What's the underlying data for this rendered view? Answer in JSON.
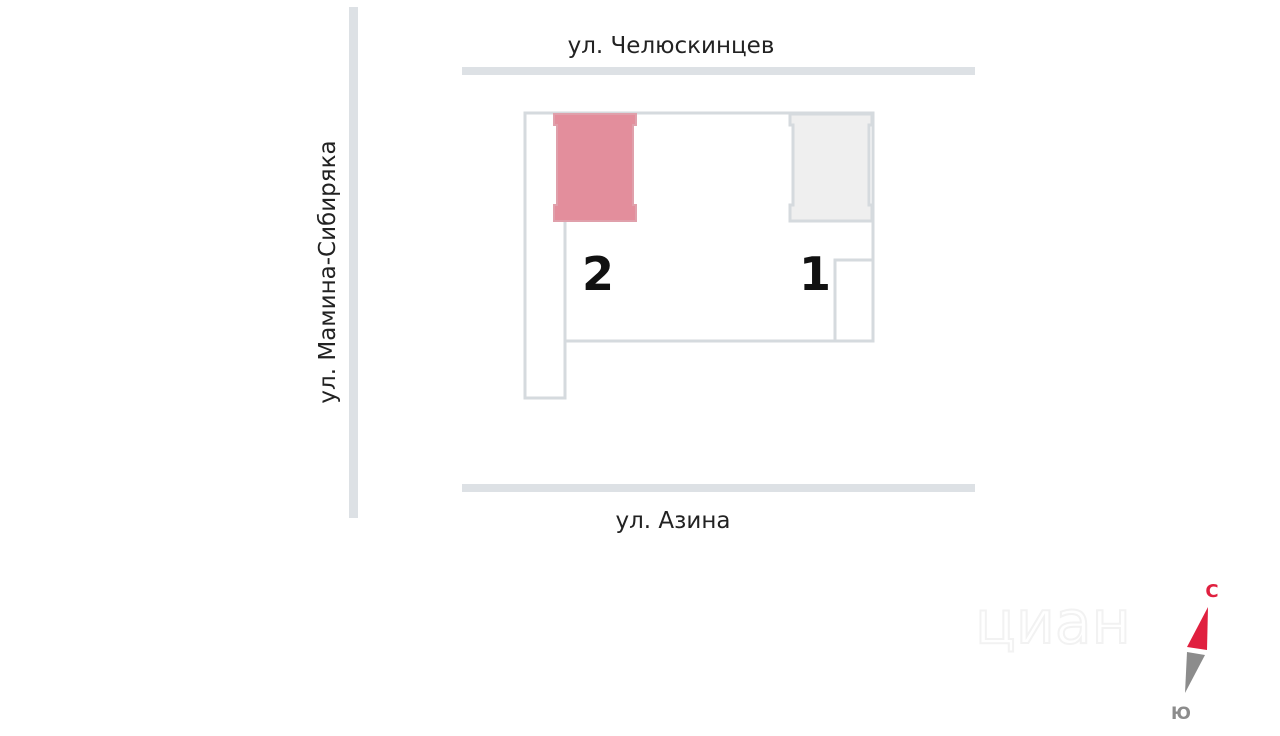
{
  "streets": {
    "north": "ул. Челюскинцев",
    "south": "ул. Азина",
    "west": "ул. Мамина-Сибиряка"
  },
  "buildings": [
    {
      "label": "1",
      "selected": false,
      "color": "#efefef"
    },
    {
      "label": "2",
      "selected": true,
      "color": "#e38e9c"
    }
  ],
  "compass": {
    "north": "С",
    "south": "Ю",
    "north_color": "#e0203f",
    "south_color": "#8c8c8c"
  },
  "watermark": "циан",
  "colors": {
    "road": "#dde1e5",
    "outline": "#d5dade"
  }
}
